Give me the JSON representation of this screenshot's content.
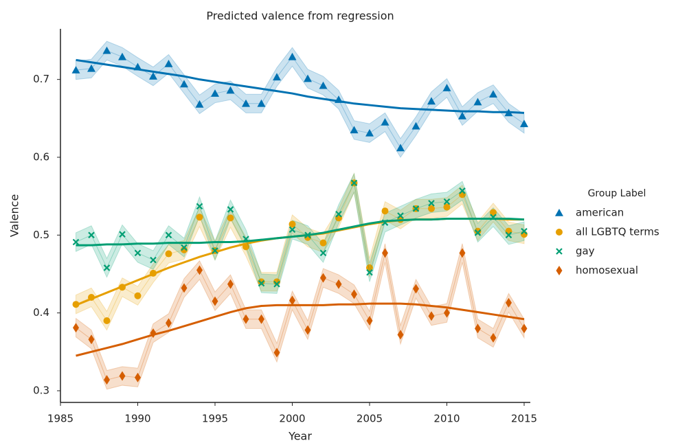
{
  "chart_data": {
    "type": "line",
    "title": "Predicted valence from regression",
    "xlabel": "Year",
    "ylabel": "Valence",
    "legend_title": "Group Label",
    "legend": "right",
    "x": [
      1986,
      1987,
      1988,
      1989,
      1990,
      1991,
      1992,
      1993,
      1994,
      1995,
      1996,
      1997,
      1998,
      1999,
      2000,
      2001,
      2002,
      2003,
      2004,
      2005,
      2006,
      2007,
      2008,
      2009,
      2010,
      2011,
      2012,
      2013,
      2014,
      2015
    ],
    "xlim": [
      1985,
      2015.4
    ],
    "xticks": [
      1985,
      1990,
      1995,
      2000,
      2005,
      2010,
      2015
    ],
    "ylim": [
      0.285,
      0.765
    ],
    "yticks": [
      0.3,
      0.4,
      0.5,
      0.6,
      0.7
    ],
    "series": [
      {
        "name": "american",
        "color": "#0072b2",
        "marker": "triangle",
        "ci": 0.012,
        "values": [
          0.712,
          0.714,
          0.737,
          0.729,
          0.716,
          0.704,
          0.72,
          0.694,
          0.668,
          0.682,
          0.686,
          0.669,
          0.669,
          0.703,
          0.729,
          0.701,
          0.692,
          0.674,
          0.635,
          0.631,
          0.645,
          0.612,
          0.64,
          0.672,
          0.689,
          0.653,
          0.671,
          0.681,
          0.657,
          0.643
        ],
        "trend": [
          0.725,
          0.722,
          0.719,
          0.716,
          0.713,
          0.71,
          0.707,
          0.704,
          0.7,
          0.697,
          0.694,
          0.691,
          0.688,
          0.685,
          0.682,
          0.678,
          0.675,
          0.672,
          0.669,
          0.667,
          0.665,
          0.663,
          0.662,
          0.661,
          0.66,
          0.659,
          0.659,
          0.658,
          0.658,
          0.657
        ]
      },
      {
        "name": "all LGBTQ terms",
        "color": "#e69f00",
        "marker": "circle",
        "ci": 0.012,
        "values": [
          0.411,
          0.42,
          0.39,
          0.433,
          0.422,
          0.451,
          0.476,
          0.481,
          0.523,
          0.48,
          0.522,
          0.485,
          0.44,
          0.44,
          0.514,
          0.497,
          0.49,
          0.522,
          0.567,
          0.458,
          0.531,
          0.52,
          0.534,
          0.534,
          0.536,
          0.552,
          0.505,
          0.529,
          0.505,
          0.501
        ],
        "trend": [
          0.41,
          0.418,
          0.426,
          0.434,
          0.442,
          0.45,
          0.458,
          0.465,
          0.472,
          0.478,
          0.484,
          0.489,
          0.493,
          0.496,
          0.498,
          0.5,
          0.502,
          0.506,
          0.51,
          0.514,
          0.517,
          0.519,
          0.52,
          0.52,
          0.521,
          0.521,
          0.521,
          0.521,
          0.52,
          0.52
        ]
      },
      {
        "name": "gay",
        "color": "#009e73",
        "marker": "x",
        "ci": 0.012,
        "values": [
          0.491,
          0.5,
          0.458,
          0.501,
          0.477,
          0.468,
          0.5,
          0.484,
          0.537,
          0.48,
          0.533,
          0.495,
          0.438,
          0.437,
          0.507,
          0.5,
          0.477,
          0.527,
          0.567,
          0.452,
          0.516,
          0.525,
          0.534,
          0.541,
          0.543,
          0.557,
          0.503,
          0.523,
          0.5,
          0.505
        ],
        "trend": [
          0.487,
          0.487,
          0.488,
          0.488,
          0.489,
          0.489,
          0.49,
          0.49,
          0.49,
          0.491,
          0.491,
          0.492,
          0.494,
          0.496,
          0.498,
          0.5,
          0.503,
          0.507,
          0.511,
          0.515,
          0.518,
          0.519,
          0.52,
          0.52,
          0.521,
          0.521,
          0.521,
          0.521,
          0.521,
          0.52
        ]
      },
      {
        "name": "homosexual",
        "color": "#d55e00",
        "marker": "diamond",
        "ci": 0.012,
        "values": [
          0.381,
          0.366,
          0.314,
          0.319,
          0.317,
          0.374,
          0.387,
          0.432,
          0.455,
          0.415,
          0.437,
          0.392,
          0.392,
          0.349,
          0.416,
          0.378,
          0.445,
          0.437,
          0.424,
          0.39,
          0.477,
          0.372,
          0.431,
          0.396,
          0.4,
          0.477,
          0.38,
          0.368,
          0.413,
          0.38
        ],
        "trend": [
          0.345,
          0.35,
          0.355,
          0.36,
          0.366,
          0.372,
          0.377,
          0.383,
          0.389,
          0.395,
          0.401,
          0.406,
          0.409,
          0.41,
          0.41,
          0.41,
          0.41,
          0.411,
          0.411,
          0.412,
          0.412,
          0.412,
          0.411,
          0.409,
          0.407,
          0.404,
          0.401,
          0.398,
          0.395,
          0.392
        ]
      }
    ]
  }
}
